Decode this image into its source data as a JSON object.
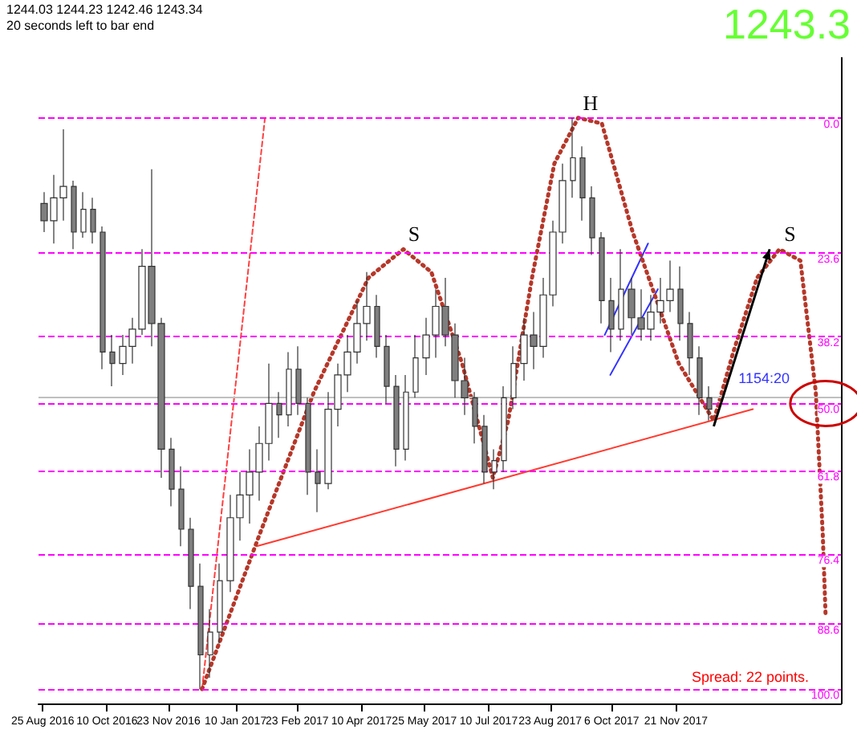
{
  "chart_data": {
    "type": "candlestick",
    "tick_labels": "x",
    "x": [
      "2016-08-26",
      "2016-09-02",
      "2016-09-09",
      "2016-09-16",
      "2016-09-23",
      "2016-09-30",
      "2016-10-07",
      "2016-10-14",
      "2016-10-21",
      "2016-10-28",
      "2016-11-04",
      "2016-11-11",
      "2016-11-18",
      "2016-11-25",
      "2016-12-02",
      "2016-12-09",
      "2016-12-16",
      "2016-12-23",
      "2016-12-30",
      "2017-01-06",
      "2017-01-13",
      "2017-01-20",
      "2017-01-27",
      "2017-02-03",
      "2017-02-10",
      "2017-02-17",
      "2017-02-24",
      "2017-03-03",
      "2017-03-10",
      "2017-03-17",
      "2017-03-24",
      "2017-03-31",
      "2017-04-07",
      "2017-04-14",
      "2017-04-21",
      "2017-04-28",
      "2017-05-05",
      "2017-05-12",
      "2017-05-19",
      "2017-05-26",
      "2017-06-02",
      "2017-06-09",
      "2017-06-16",
      "2017-06-23",
      "2017-06-30",
      "2017-07-07",
      "2017-07-14",
      "2017-07-21",
      "2017-07-28",
      "2017-08-04",
      "2017-08-11",
      "2017-08-18",
      "2017-08-25",
      "2017-09-01",
      "2017-09-08",
      "2017-09-15",
      "2017-09-22",
      "2017-09-29",
      "2017-10-06",
      "2017-10-13",
      "2017-10-20",
      "2017-10-27",
      "2017-11-03",
      "2017-11-10",
      "2017-11-17",
      "2017-11-24",
      "2017-12-01",
      "2017-12-08",
      "2017-12-15"
    ],
    "ohlc": [
      [
        15,
        20,
        13,
        18
      ],
      [
        18,
        22,
        10,
        14
      ],
      [
        14,
        18,
        2,
        12
      ],
      [
        12,
        23,
        11,
        20
      ],
      [
        20,
        21,
        13,
        16
      ],
      [
        16,
        22,
        14,
        20
      ],
      [
        20,
        44,
        19,
        41
      ],
      [
        41,
        47,
        38,
        43
      ],
      [
        43,
        45,
        38,
        40
      ],
      [
        40,
        43,
        35,
        37
      ],
      [
        37,
        38,
        23,
        26
      ],
      [
        26,
        40,
        9,
        36
      ],
      [
        36,
        63,
        35,
        58
      ],
      [
        58,
        68,
        56,
        65
      ],
      [
        65,
        75,
        61,
        72
      ],
      [
        72,
        86,
        70,
        82
      ],
      [
        82,
        100,
        78,
        94
      ],
      [
        94,
        98,
        86,
        90
      ],
      [
        90,
        92,
        78,
        81
      ],
      [
        81,
        83,
        66,
        70
      ],
      [
        70,
        74,
        62,
        66
      ],
      [
        66,
        71,
        58,
        62
      ],
      [
        62,
        67,
        54,
        57
      ],
      [
        57,
        60,
        43,
        50
      ],
      [
        50,
        56,
        48,
        52
      ],
      [
        52,
        54,
        41,
        44
      ],
      [
        44,
        52,
        40,
        50
      ],
      [
        50,
        66,
        49,
        62
      ],
      [
        62,
        69,
        58,
        64
      ],
      [
        64,
        65,
        48,
        51
      ],
      [
        51,
        54,
        43,
        45
      ],
      [
        45,
        48,
        38,
        41
      ],
      [
        41,
        43,
        32,
        36
      ],
      [
        36,
        39,
        27,
        33
      ],
      [
        33,
        42,
        31,
        40
      ],
      [
        40,
        50,
        38,
        47
      ],
      [
        47,
        61,
        45,
        58
      ],
      [
        58,
        60,
        45,
        48
      ],
      [
        48,
        49,
        38,
        42
      ],
      [
        42,
        45,
        35,
        38
      ],
      [
        38,
        42,
        30,
        33
      ],
      [
        33,
        40,
        28,
        38
      ],
      [
        38,
        49,
        36,
        46
      ],
      [
        46,
        52,
        42,
        49
      ],
      [
        49,
        57,
        48,
        54
      ],
      [
        54,
        64,
        52,
        62
      ],
      [
        62,
        65,
        58,
        60
      ],
      [
        60,
        62,
        47,
        49
      ],
      [
        49,
        51,
        40,
        43
      ],
      [
        43,
        46,
        35,
        38
      ],
      [
        38,
        44,
        34,
        40
      ],
      [
        40,
        42,
        28,
        31
      ],
      [
        31,
        33,
        18,
        20
      ],
      [
        20,
        22,
        8,
        11
      ],
      [
        11,
        14,
        0,
        7
      ],
      [
        7,
        18,
        5,
        14
      ],
      [
        14,
        24,
        12,
        21
      ],
      [
        21,
        36,
        20,
        32
      ],
      [
        32,
        41,
        28,
        37
      ],
      [
        37,
        39,
        23,
        30
      ],
      [
        30,
        38,
        28,
        35
      ],
      [
        35,
        39,
        30,
        37
      ],
      [
        37,
        39,
        31,
        34
      ],
      [
        34,
        36,
        28,
        32
      ],
      [
        32,
        34,
        25,
        30
      ],
      [
        30,
        39,
        26,
        36
      ],
      [
        36,
        45,
        34,
        42
      ],
      [
        42,
        52,
        40,
        49
      ],
      [
        49,
        53,
        47,
        51
      ]
    ],
    "colors": [
      "#7f7f7f",
      "#ffffff",
      "#ffffff",
      "#7f7f7f",
      "#ffffff",
      "#7f7f7f",
      "#7f7f7f",
      "#7f7f7f",
      "#ffffff",
      "#ffffff",
      "#ffffff",
      "#7f7f7f",
      "#7f7f7f",
      "#7f7f7f",
      "#7f7f7f",
      "#7f7f7f",
      "#7f7f7f",
      "#ffffff",
      "#ffffff",
      "#ffffff",
      "#ffffff",
      "#ffffff",
      "#ffffff",
      "#ffffff",
      "#7f7f7f",
      "#ffffff",
      "#7f7f7f",
      "#7f7f7f",
      "#7f7f7f",
      "#ffffff",
      "#ffffff",
      "#ffffff",
      "#ffffff",
      "#ffffff",
      "#7f7f7f",
      "#7f7f7f",
      "#7f7f7f",
      "#ffffff",
      "#ffffff",
      "#ffffff",
      "#ffffff",
      "#7f7f7f",
      "#7f7f7f",
      "#7f7f7f",
      "#7f7f7f",
      "#7f7f7f",
      "#ffffff",
      "#ffffff",
      "#ffffff",
      "#ffffff",
      "#7f7f7f",
      "#ffffff",
      "#ffffff",
      "#ffffff",
      "#ffffff",
      "#7f7f7f",
      "#7f7f7f",
      "#7f7f7f",
      "#7f7f7f",
      "#ffffff",
      "#7f7f7f",
      "#7f7f7f",
      "#ffffff",
      "#ffffff",
      "#ffffff",
      "#7f7f7f",
      "#7f7f7f",
      "#7f7f7f",
      "#7f7f7f"
    ],
    "series": [
      {
        "type": "line",
        "color": "#ff3b30",
        "line_style": "solid",
        "x": [
          "2017-01-25",
          "2018-01-15"
        ],
        "values": [
          75,
          51
        ]
      },
      {
        "type": "line",
        "color": "#3333ff",
        "line_style": "solid",
        "x": [
          "2017-10-01",
          "2017-11-01"
        ],
        "values": [
          38,
          22
        ]
      },
      {
        "type": "line",
        "color": "#3333ff",
        "line_style": "solid",
        "x": [
          "2017-10-05",
          "2017-11-08"
        ],
        "values": [
          45,
          30
        ]
      },
      {
        "type": "line",
        "color": "#ff4040",
        "line_style": "dashed",
        "x": [
          "2016-12-17",
          "2017-01-31"
        ],
        "values": [
          100,
          0
        ]
      },
      {
        "type": "line",
        "color": "#b5382a",
        "line_style": "dotted",
        "x": [
          "2016-12-17",
          "2017-01-27",
          "2017-03-07",
          "2017-04-15",
          "2017-05-10",
          "2017-05-30",
          "2017-06-21",
          "2017-07-13",
          "2017-07-24",
          "2017-08-10",
          "2017-08-26",
          "2017-09-12",
          "2017-09-29",
          "2017-10-21",
          "2017-11-23",
          "2017-12-18",
          "2018-01-01",
          "2018-01-18",
          "2018-02-03",
          "2018-02-18",
          "2018-03-01",
          "2018-03-06",
          "2018-03-08"
        ],
        "values": [
          100,
          73,
          48,
          28,
          23,
          27,
          43,
          63,
          53,
          28,
          8,
          0,
          1,
          20,
          43,
          53,
          41,
          28,
          23,
          25,
          48,
          73,
          87
        ]
      }
    ],
    "xlim": [
      "2016-08-22",
      "2018-03-19"
    ],
    "ylim": [
      102.5,
      -10.5
    ],
    "xticks": [
      {
        "value": "2016-08-25",
        "label": "25 Aug 2016"
      },
      {
        "value": "2016-10-10",
        "label": "10 Oct 2016"
      },
      {
        "value": "2016-11-23",
        "label": "23 Nov 2016"
      },
      {
        "value": "2017-01-10",
        "label": "10 Jan 2017"
      },
      {
        "value": "2017-02-23",
        "label": "23 Feb 2017"
      },
      {
        "value": "2017-04-10",
        "label": "10 Apr 2017"
      },
      {
        "value": "2017-05-25",
        "label": "25 May 2017"
      },
      {
        "value": "2017-07-10",
        "label": "10 Jul 2017"
      },
      {
        "value": "2017-08-23",
        "label": "23 Aug 2017"
      },
      {
        "value": "2017-10-06",
        "label": "6 Oct 2017"
      },
      {
        "value": "2017-11-21",
        "label": "21 Nov 2017"
      }
    ],
    "ref_lines": [
      {
        "axis": "y",
        "value": 0,
        "label": "0.0",
        "color": "#ff00ff",
        "line_style": "dashed"
      },
      {
        "axis": "y",
        "value": 23.6,
        "label": "23.6",
        "color": "#ff00ff",
        "line_style": "dashed"
      },
      {
        "axis": "y",
        "value": 38.2,
        "label": "38.2",
        "color": "#ff00ff",
        "line_style": "dashed"
      },
      {
        "axis": "y",
        "value": 50,
        "label": "50.0",
        "color": "#ff00ff",
        "line_style": "dashed"
      },
      {
        "axis": "y",
        "value": 61.8,
        "label": "61.8",
        "color": "#ff00ff",
        "line_style": "dashed"
      },
      {
        "axis": "y",
        "value": 76.4,
        "label": "76.4",
        "color": "#ff00ff",
        "line_style": "dashed"
      },
      {
        "axis": "y",
        "value": 88.6,
        "label": "88.6",
        "color": "#ff00ff",
        "line_style": "dashed"
      },
      {
        "axis": "y",
        "value": 100,
        "label": "100.0",
        "color": "#ff00ff",
        "line_style": "dashed"
      },
      {
        "axis": "y",
        "value": 49,
        "color": "#c0c0c0",
        "line_style": "solid"
      }
    ],
    "annotations": [
      "1244.03 1244.23 1242.46 1243.34",
      "20 seconds left to bar end",
      "1243.3",
      "Spread: 22 points.",
      {
        "text": "S",
        "x": "2017-05-10",
        "y": 23
      },
      {
        "text": "H",
        "x": "2017-09-12",
        "y": 0
      },
      {
        "text": "S",
        "x": "2018-02-03",
        "y": 23
      },
      {
        "text": "1154:20",
        "x": "2017-12-15",
        "y": 51
      }
    ]
  }
}
